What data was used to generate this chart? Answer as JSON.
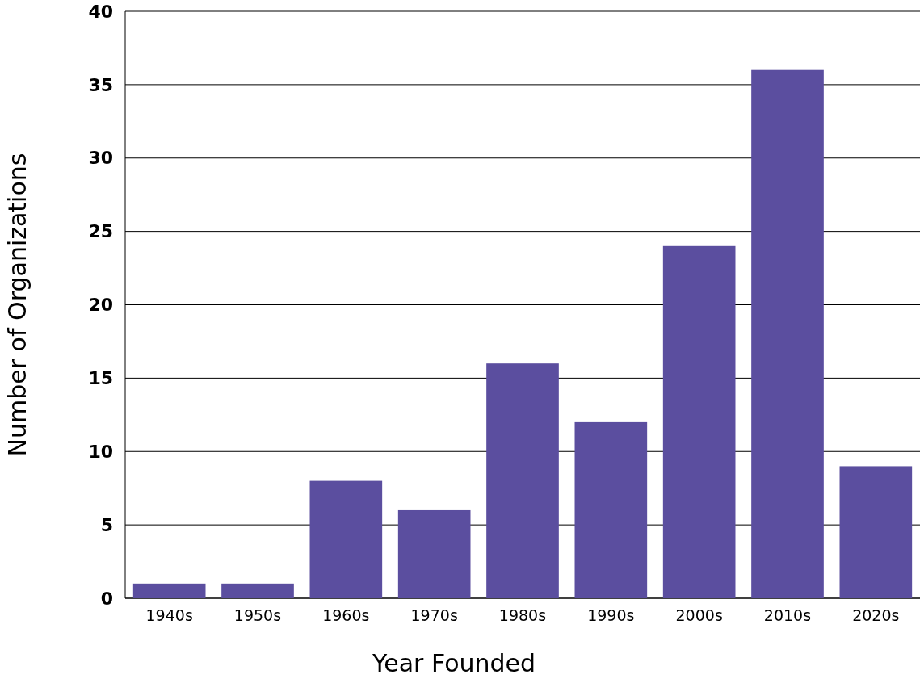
{
  "chart_data": {
    "type": "bar",
    "xlabel": "Year Founded",
    "ylabel": "Number of Organizations",
    "categories": [
      "1940s",
      "1950s",
      "1960s",
      "1970s",
      "1980s",
      "1990s",
      "2000s",
      "2010s",
      "2020s"
    ],
    "values": [
      1,
      1,
      8,
      6,
      16,
      12,
      24,
      36,
      9
    ],
    "color": "#5b4e9f",
    "ylim": [
      0,
      40
    ],
    "yticks": [
      0,
      5,
      10,
      15,
      20,
      25,
      30,
      35,
      40
    ],
    "grid": "y"
  }
}
